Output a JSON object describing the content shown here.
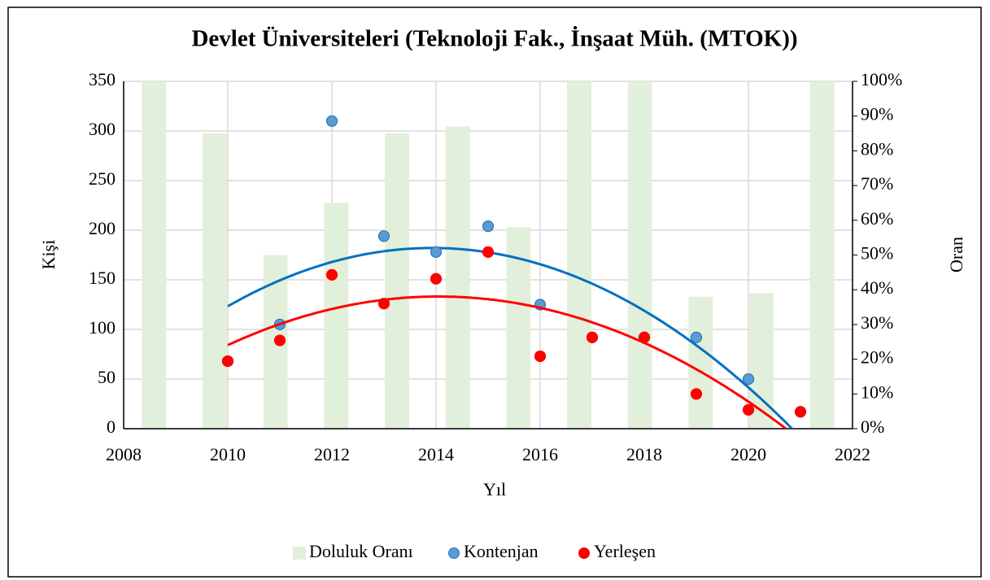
{
  "chart_data": {
    "type": "scatter",
    "title": "Devlet Üniversiteleri (Teknoloji Fak., İnşaat Müh. (MTOK))",
    "x_label": "Yıl",
    "y_label": "Kişi",
    "y2_label": "Oran",
    "x": [
      2010,
      2011,
      2012,
      2013,
      2014,
      2015,
      2016,
      2017,
      2018,
      2019,
      2020,
      2021
    ],
    "series": [
      {
        "name": "Doluluk Oranı",
        "type": "bar",
        "axis": "y2",
        "color": "#e2efda",
        "values": [
          100,
          85,
          50,
          65,
          85,
          87,
          58,
          100,
          100,
          38,
          39,
          100
        ]
      },
      {
        "name": "Kontenjan",
        "type": "scatter",
        "color": "#5b9bd5",
        "trendline_color": "#0070c0",
        "values": [
          68,
          105,
          310,
          194,
          178,
          204,
          125,
          92,
          92,
          92,
          50,
          17
        ]
      },
      {
        "name": "Yerleşen",
        "type": "scatter",
        "color": "#ff0000",
        "trendline_color": "#ff0000",
        "values": [
          68,
          89,
          155,
          126,
          151,
          178,
          73,
          92,
          92,
          35,
          19,
          17
        ]
      }
    ],
    "xlim": [
      2008,
      2022
    ],
    "xticks": [
      2008,
      2010,
      2012,
      2014,
      2016,
      2018,
      2020,
      2022
    ],
    "ylim": [
      0,
      350
    ],
    "yticks": [
      0,
      50,
      100,
      150,
      200,
      250,
      300,
      350
    ],
    "y2lim": [
      0,
      100
    ],
    "y2ticks": [
      {
        "value": 0,
        "label": "0%"
      },
      {
        "value": 10,
        "label": "10%"
      },
      {
        "value": 20,
        "label": "20%"
      },
      {
        "value": 30,
        "label": "30%"
      },
      {
        "value": 40,
        "label": "40%"
      },
      {
        "value": 50,
        "label": "50%"
      },
      {
        "value": 60,
        "label": "60%"
      },
      {
        "value": 70,
        "label": "70%"
      },
      {
        "value": 80,
        "label": "80%"
      },
      {
        "value": 90,
        "label": "90%"
      },
      {
        "value": 100,
        "label": "100%"
      }
    ],
    "grid": true,
    "trendline": "polynomial-2",
    "legend": "bottom"
  }
}
